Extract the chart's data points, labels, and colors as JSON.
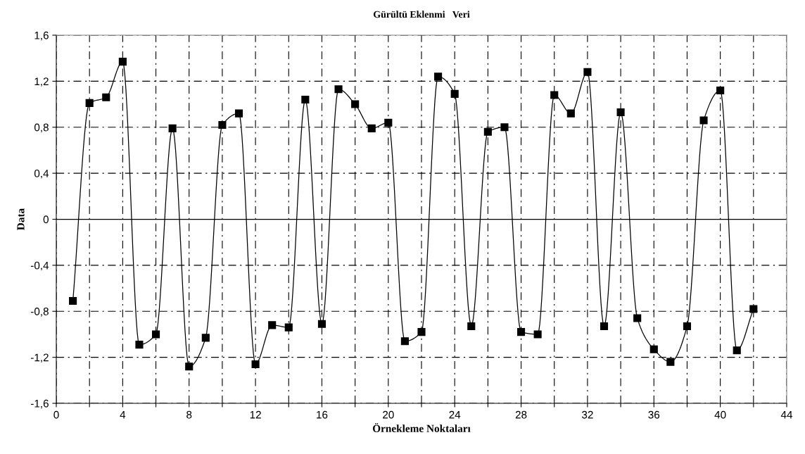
{
  "chart_data": {
    "type": "line",
    "title": "Gürültü Eklenmi   Veri",
    "xlabel": "Örnekleme Noktaları",
    "ylabel": "Data",
    "x": [
      1,
      2,
      3,
      4,
      5,
      6,
      7,
      8,
      9,
      10,
      11,
      12,
      13,
      14,
      15,
      16,
      17,
      18,
      19,
      20,
      21,
      22,
      23,
      24,
      25,
      26,
      27,
      28,
      29,
      30,
      31,
      32,
      33,
      34,
      35,
      36,
      37,
      38,
      39,
      40,
      41,
      42
    ],
    "series": [
      {
        "color": "#000000",
        "values": [
          -0.71,
          1.01,
          1.06,
          1.37,
          -1.09,
          -1.0,
          0.79,
          -1.28,
          -1.03,
          0.82,
          0.92,
          -1.26,
          -0.92,
          -0.94,
          1.04,
          -0.91,
          1.13,
          1.0,
          0.79,
          0.84,
          -1.06,
          -0.98,
          1.24,
          1.09,
          -0.93,
          0.76,
          0.8,
          -0.98,
          -1.0,
          1.08,
          0.92,
          1.28,
          -0.93,
          0.93,
          -0.86,
          -1.13,
          -1.24,
          -0.93,
          0.86,
          1.12,
          -1.14,
          -0.78
        ]
      }
    ],
    "xlim": [
      0,
      44
    ],
    "xticks": [
      0,
      {
        "value": 2,
        "label": null
      },
      4,
      {
        "value": 6,
        "label": null
      },
      8,
      {
        "value": 10,
        "label": null
      },
      12,
      {
        "value": 14,
        "label": null
      },
      16,
      {
        "value": 18,
        "label": null
      },
      20,
      {
        "value": 22,
        "label": null
      },
      24,
      {
        "value": 26,
        "label": null
      },
      28,
      {
        "value": 30,
        "label": null
      },
      32,
      {
        "value": 34,
        "label": null
      },
      36,
      {
        "value": 38,
        "label": null
      },
      40,
      {
        "value": 42,
        "label": null
      },
      44
    ],
    "ylim": [
      -1.6,
      1.6
    ],
    "yticks": [
      {
        "value": -1.6,
        "label": "-1,6"
      },
      {
        "value": -1.2,
        "label": "-1,2"
      },
      {
        "value": -0.8,
        "label": "-0,8"
      },
      {
        "value": -0.4,
        "label": "-0,4"
      },
      0,
      {
        "value": 0.4,
        "label": "0,4"
      },
      {
        "value": 0.8,
        "label": "0,8"
      },
      {
        "value": 1.2,
        "label": "1,2"
      },
      {
        "value": 1.6,
        "label": "1,6"
      }
    ],
    "ref_lines": [
      {
        "axis": "y",
        "value": 0,
        "label": null,
        "color": "#000000",
        "line_style": "solid"
      }
    ],
    "grid": true,
    "marker": "square",
    "line_style": "solid"
  }
}
